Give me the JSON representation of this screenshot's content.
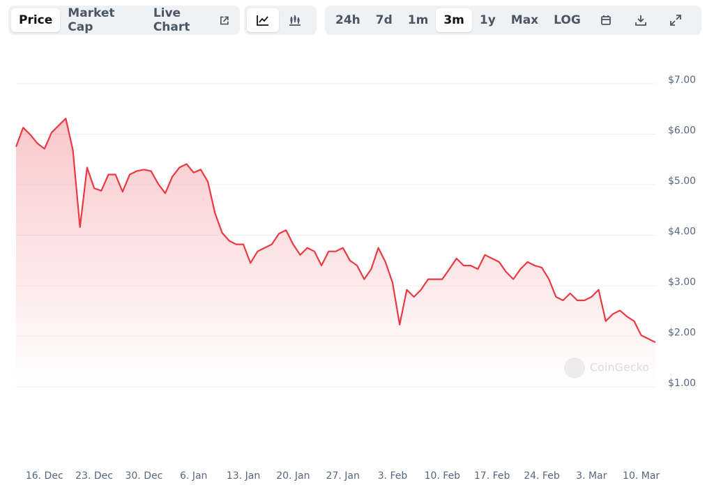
{
  "toolbar": {
    "tabs": [
      "Price",
      "Market Cap",
      "Live Chart"
    ],
    "ranges": [
      "24h",
      "7d",
      "1m",
      "3m",
      "1y",
      "Max",
      "LOG"
    ]
  },
  "chart_data": {
    "type": "line",
    "watermark": "CoinGecko",
    "categories": [
      null,
      null,
      null,
      null,
      "16. Dec",
      null,
      null,
      null,
      null,
      null,
      null,
      "23. Dec",
      null,
      null,
      null,
      null,
      null,
      null,
      "30. Dec",
      null,
      null,
      null,
      null,
      null,
      null,
      "6. Jan",
      null,
      null,
      null,
      null,
      null,
      null,
      "13. Jan",
      null,
      null,
      null,
      null,
      null,
      null,
      "20. Jan",
      null,
      null,
      null,
      null,
      null,
      null,
      "27. Jan",
      null,
      null,
      null,
      null,
      null,
      null,
      "3. Feb",
      null,
      null,
      null,
      null,
      null,
      null,
      "10. Feb",
      null,
      null,
      null,
      null,
      null,
      null,
      "17. Feb",
      null,
      null,
      null,
      null,
      null,
      null,
      "24. Feb",
      null,
      null,
      null,
      null,
      null,
      null,
      "3. Mar",
      null,
      null,
      null,
      null,
      null,
      null,
      "10. Mar",
      null,
      null
    ],
    "series": [
      {
        "name": "Price",
        "color": "#ea3943",
        "values": [
          5.75,
          6.13,
          5.99,
          5.82,
          5.71,
          6.03,
          6.17,
          6.31,
          5.69,
          4.16,
          5.34,
          4.93,
          4.88,
          5.2,
          5.2,
          4.86,
          5.2,
          5.27,
          5.3,
          5.27,
          5.02,
          4.83,
          5.16,
          5.34,
          5.41,
          5.24,
          5.3,
          5.06,
          4.44,
          4.05,
          3.89,
          3.82,
          3.82,
          3.45,
          3.68,
          3.75,
          3.82,
          4.03,
          4.1,
          3.82,
          3.61,
          3.75,
          3.68,
          3.4,
          3.68,
          3.68,
          3.75,
          3.5,
          3.4,
          3.13,
          3.33,
          3.75,
          3.47,
          3.06,
          2.23,
          2.92,
          2.78,
          2.92,
          3.13,
          3.13,
          3.13,
          3.33,
          3.54,
          3.4,
          3.4,
          3.33,
          3.61,
          3.54,
          3.47,
          3.27,
          3.13,
          3.33,
          3.47,
          3.4,
          3.36,
          3.13,
          2.78,
          2.71,
          2.85,
          2.71,
          2.71,
          2.78,
          2.92,
          2.3,
          2.44,
          2.51,
          2.39,
          2.3,
          2.02,
          1.95,
          1.88
        ]
      }
    ],
    "ylim": [
      1,
      7
    ],
    "yticks": [
      {
        "value": 7,
        "label": "$7.00"
      },
      {
        "value": 6,
        "label": "$6.00"
      },
      {
        "value": 5,
        "label": "$5.00"
      },
      {
        "value": 4,
        "label": "$4.00"
      },
      {
        "value": 3,
        "label": "$3.00"
      },
      {
        "value": 2,
        "label": "$2.00"
      },
      {
        "value": 1,
        "label": "$1.00"
      }
    ],
    "grid": true
  }
}
